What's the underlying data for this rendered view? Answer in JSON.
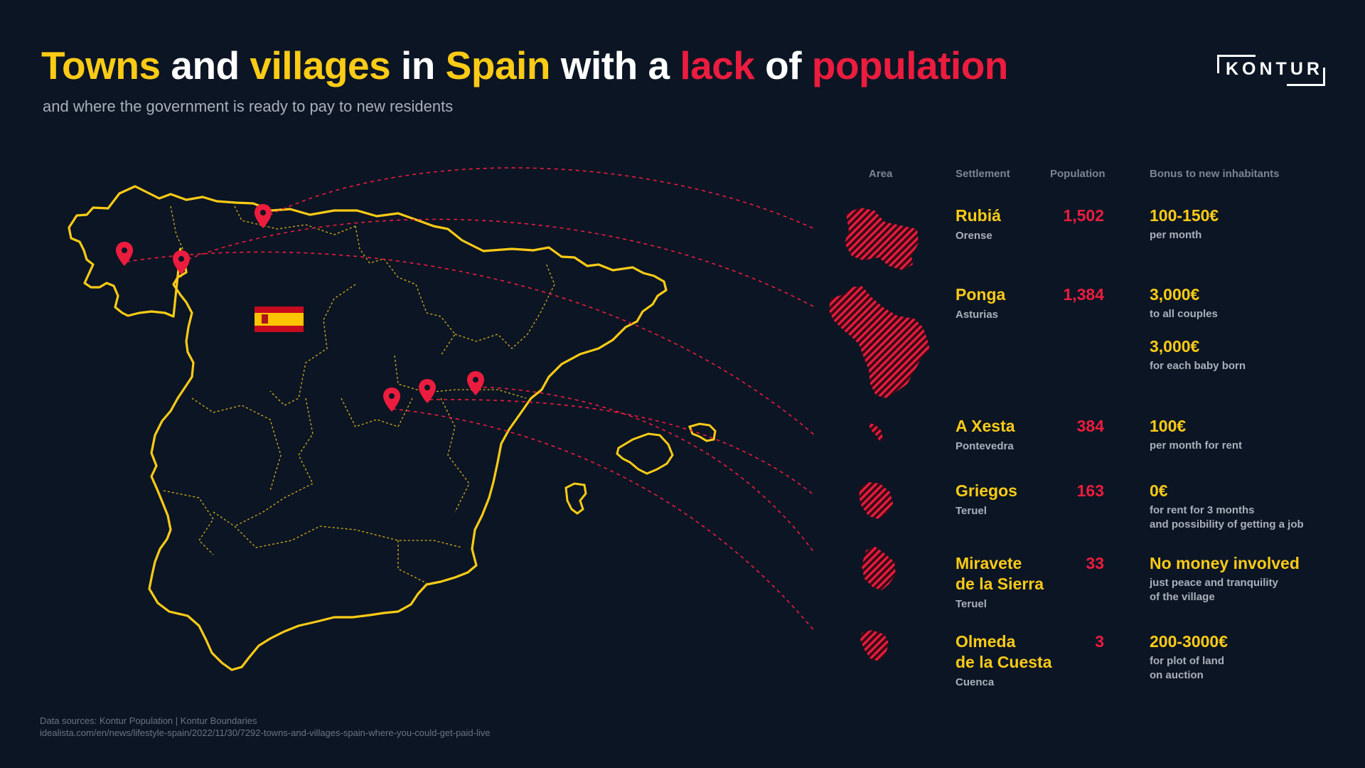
{
  "title": {
    "w1": "Towns",
    "w2": "and",
    "w3": "villages",
    "w4": "in",
    "w5": "Spain",
    "w6": "with a",
    "w7": "lack",
    "w8": "of",
    "w9": "population"
  },
  "subtitle": "and where the government is ready to pay to new residents",
  "logo": "KONTUR",
  "headers": {
    "area": "Area",
    "settlement": "Settlement",
    "population": "Population",
    "bonus": "Bonus to new inhabitants"
  },
  "rows": [
    {
      "name": "Rubiá",
      "region": "Orense",
      "population": "1,502",
      "bonuses": [
        {
          "amount": "100-150€",
          "desc": "per month"
        }
      ]
    },
    {
      "name": "Ponga",
      "region": "Asturias",
      "population": "1,384",
      "bonuses": [
        {
          "amount": "3,000€",
          "desc": "to all couples"
        },
        {
          "amount": "3,000€",
          "desc": "for each baby born"
        }
      ]
    },
    {
      "name": "A Xesta",
      "region": "Pontevedra",
      "population": "384",
      "bonuses": [
        {
          "amount": "100€",
          "desc": "per month for rent"
        }
      ]
    },
    {
      "name": "Griegos",
      "region": "Teruel",
      "population": "163",
      "bonuses": [
        {
          "amount": "0€",
          "desc": "for rent for 3 months\nand possibility of getting a job"
        }
      ]
    },
    {
      "name": "Miravete\nde la Sierra",
      "region": "Teruel",
      "population": "33",
      "bonuses": [
        {
          "amount": "No money involved",
          "desc": "just peace and tranquility\nof the village"
        }
      ]
    },
    {
      "name": "Olmeda\nde la Cuesta",
      "region": "Cuenca",
      "population": "3",
      "bonuses": [
        {
          "amount": "200-3000€",
          "desc": "for plot of land\non auction"
        }
      ]
    }
  ],
  "sources": {
    "line1": "Data sources: Kontur Population | Kontur Boundaries",
    "line2": "idealista.com/en/news/lifestyle-spain/2022/11/30/7292-towns-and-villages-spain-where-you-could-get-paid-live"
  },
  "colors": {
    "background": "#0b1524",
    "accent_yellow": "#fccb16",
    "accent_red": "#ec1c3e",
    "text_gray": "#a9b0ba"
  },
  "icons": [
    "map-pin-icon",
    "spain-flag-icon"
  ]
}
